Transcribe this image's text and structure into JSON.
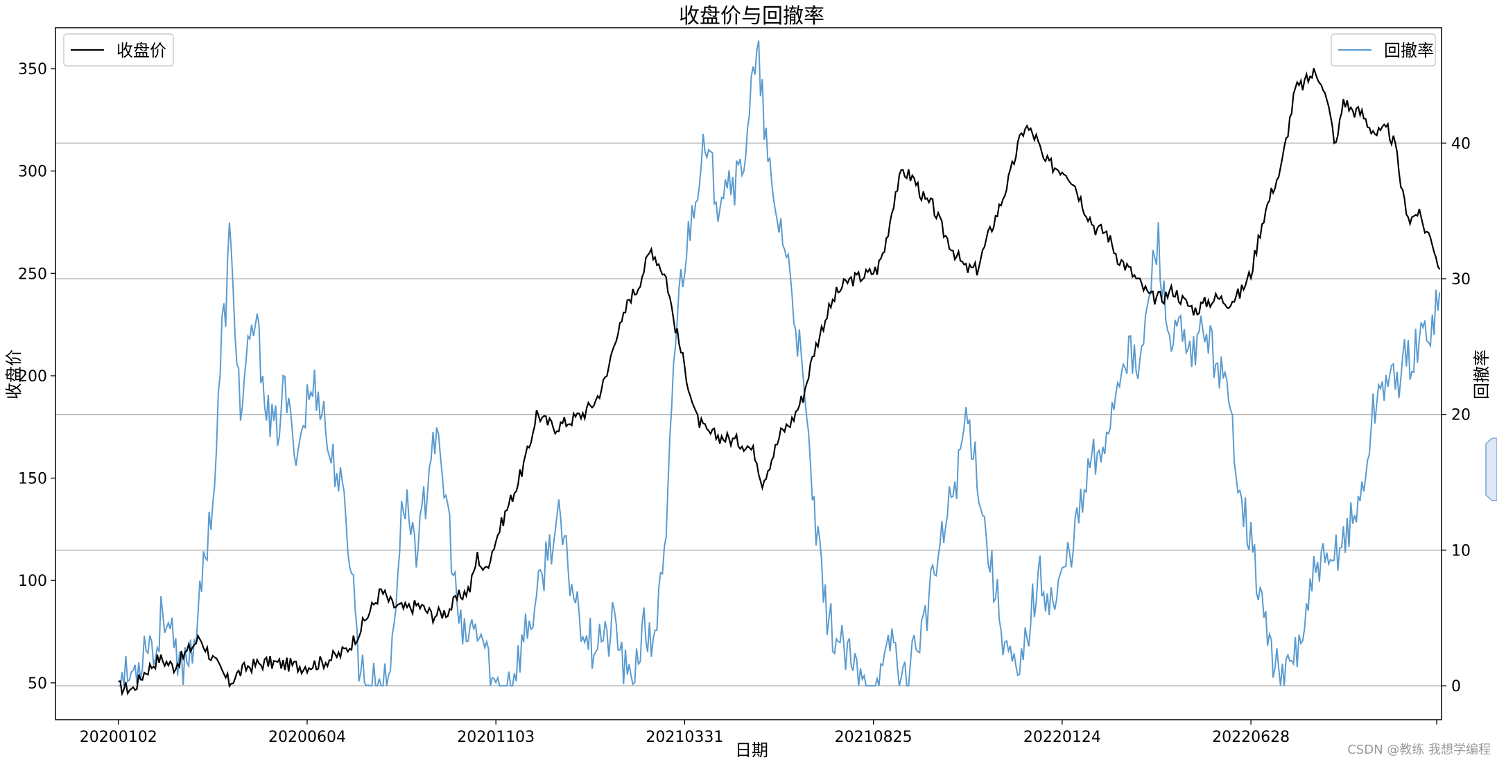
{
  "chart_data": {
    "type": "line",
    "title": "收盘价与回撤率",
    "xlabel": "日期",
    "ylabel_left": "收盘价",
    "ylabel_right": "回撤率",
    "x_tick_labels": [
      "20200102",
      "20200604",
      "20201103",
      "20210331",
      "20210825",
      "20220124",
      "20220628"
    ],
    "x_tick_index": [
      0,
      102,
      204,
      306,
      408,
      510,
      612
    ],
    "x_range": [
      -34,
      715
    ],
    "ylim_left": [
      32,
      370
    ],
    "yticks_left": [
      50,
      100,
      150,
      200,
      250,
      300,
      350
    ],
    "ylim_right": [
      -2.5,
      48.5
    ],
    "yticks_right": [
      0,
      10,
      20,
      30,
      40
    ],
    "grid": "horizontal lines at right-axis ticks",
    "legend_left": "top-left",
    "legend_right": "top-right",
    "series": [
      {
        "name": "收盘价",
        "axis": "left",
        "color": "#000000",
        "keypoints": [
          [
            0,
            48
          ],
          [
            8,
            47
          ],
          [
            14,
            55
          ],
          [
            22,
            62
          ],
          [
            30,
            58
          ],
          [
            38,
            66
          ],
          [
            44,
            72
          ],
          [
            50,
            63
          ],
          [
            56,
            55
          ],
          [
            60,
            50
          ],
          [
            64,
            54
          ],
          [
            70,
            58
          ],
          [
            80,
            60
          ],
          [
            90,
            59
          ],
          [
            100,
            58
          ],
          [
            110,
            60
          ],
          [
            120,
            64
          ],
          [
            125,
            68
          ],
          [
            130,
            75
          ],
          [
            136,
            85
          ],
          [
            142,
            95
          ],
          [
            148,
            88
          ],
          [
            155,
            86
          ],
          [
            162,
            88
          ],
          [
            170,
            83
          ],
          [
            178,
            85
          ],
          [
            184,
            92
          ],
          [
            190,
            96
          ],
          [
            194,
            112
          ],
          [
            198,
            104
          ],
          [
            204,
            120
          ],
          [
            210,
            135
          ],
          [
            216,
            148
          ],
          [
            222,
            165
          ],
          [
            226,
            182
          ],
          [
            230,
            178
          ],
          [
            236,
            175
          ],
          [
            244,
            178
          ],
          [
            252,
            182
          ],
          [
            258,
            188
          ],
          [
            264,
            200
          ],
          [
            268,
            218
          ],
          [
            272,
            225
          ],
          [
            276,
            238
          ],
          [
            280,
            242
          ],
          [
            284,
            252
          ],
          [
            288,
            262
          ],
          [
            292,
            255
          ],
          [
            296,
            248
          ],
          [
            300,
            228
          ],
          [
            304,
            212
          ],
          [
            308,
            196
          ],
          [
            312,
            180
          ],
          [
            318,
            172
          ],
          [
            326,
            170
          ],
          [
            334,
            168
          ],
          [
            340,
            166
          ],
          [
            344,
            162
          ],
          [
            348,
            148
          ],
          [
            354,
            162
          ],
          [
            358,
            172
          ],
          [
            364,
            178
          ],
          [
            370,
            190
          ],
          [
            376,
            212
          ],
          [
            382,
            228
          ],
          [
            388,
            240
          ],
          [
            394,
            246
          ],
          [
            400,
            248
          ],
          [
            406,
            250
          ],
          [
            410,
            252
          ],
          [
            414,
            262
          ],
          [
            420,
            290
          ],
          [
            424,
            300
          ],
          [
            430,
            296
          ],
          [
            436,
            285
          ],
          [
            440,
            283
          ],
          [
            446,
            270
          ],
          [
            452,
            260
          ],
          [
            458,
            252
          ],
          [
            464,
            252
          ],
          [
            470,
            268
          ],
          [
            476,
            282
          ],
          [
            482,
            298
          ],
          [
            486,
            312
          ],
          [
            490,
            322
          ],
          [
            496,
            316
          ],
          [
            500,
            305
          ],
          [
            506,
            302
          ],
          [
            512,
            300
          ],
          [
            516,
            295
          ],
          [
            522,
            282
          ],
          [
            528,
            272
          ],
          [
            534,
            270
          ],
          [
            540,
            258
          ],
          [
            546,
            252
          ],
          [
            552,
            245
          ],
          [
            558,
            238
          ],
          [
            564,
            238
          ],
          [
            570,
            242
          ],
          [
            576,
            236
          ],
          [
            582,
            232
          ],
          [
            588,
            236
          ],
          [
            594,
            238
          ],
          [
            600,
            236
          ],
          [
            606,
            240
          ],
          [
            612,
            250
          ],
          [
            618,
            275
          ],
          [
            624,
            292
          ],
          [
            628,
            300
          ],
          [
            632,
            320
          ],
          [
            636,
            340
          ],
          [
            640,
            342
          ],
          [
            646,
            348
          ],
          [
            650,
            345
          ],
          [
            654,
            330
          ],
          [
            658,
            312
          ],
          [
            662,
            335
          ],
          [
            666,
            330
          ],
          [
            672,
            328
          ],
          [
            676,
            322
          ],
          [
            680,
            318
          ],
          [
            686,
            320
          ],
          [
            690,
            312
          ],
          [
            694,
            288
          ],
          [
            698,
            276
          ],
          [
            702,
            280
          ],
          [
            706,
            272
          ],
          [
            710,
            266
          ],
          [
            714,
            252
          ]
        ]
      },
      {
        "name": "回撤率",
        "axis": "right",
        "color": "#5a9bcf",
        "keypoints": [
          [
            0,
            0
          ],
          [
            8,
            1
          ],
          [
            12,
            2
          ],
          [
            16,
            4
          ],
          [
            20,
            2
          ],
          [
            24,
            6
          ],
          [
            28,
            4
          ],
          [
            32,
            1
          ],
          [
            36,
            2
          ],
          [
            40,
            3
          ],
          [
            44,
            6
          ],
          [
            48,
            11
          ],
          [
            52,
            15
          ],
          [
            56,
            26
          ],
          [
            58,
            28
          ],
          [
            60,
            33
          ],
          [
            62,
            29
          ],
          [
            64,
            25
          ],
          [
            66,
            20
          ],
          [
            70,
            24
          ],
          [
            74,
            27
          ],
          [
            78,
            23
          ],
          [
            82,
            19
          ],
          [
            86,
            19
          ],
          [
            90,
            22
          ],
          [
            94,
            18
          ],
          [
            98,
            18
          ],
          [
            102,
            21
          ],
          [
            106,
            22
          ],
          [
            110,
            21
          ],
          [
            114,
            17
          ],
          [
            118,
            16
          ],
          [
            122,
            13
          ],
          [
            126,
            9
          ],
          [
            130,
            2
          ],
          [
            134,
            0
          ],
          [
            138,
            0
          ],
          [
            140,
            0
          ],
          [
            142,
            0
          ],
          [
            146,
            0
          ],
          [
            150,
            7
          ],
          [
            154,
            14
          ],
          [
            158,
            12
          ],
          [
            162,
            10
          ],
          [
            166,
            14
          ],
          [
            170,
            19
          ],
          [
            174,
            16
          ],
          [
            178,
            13
          ],
          [
            182,
            7
          ],
          [
            186,
            3
          ],
          [
            190,
            4
          ],
          [
            194,
            4
          ],
          [
            198,
            3
          ],
          [
            202,
            0
          ],
          [
            208,
            0
          ],
          [
            214,
            1
          ],
          [
            220,
            4
          ],
          [
            226,
            6
          ],
          [
            232,
            10
          ],
          [
            238,
            12
          ],
          [
            244,
            8
          ],
          [
            250,
            5
          ],
          [
            256,
            3
          ],
          [
            260,
            4
          ],
          [
            264,
            3
          ],
          [
            268,
            5
          ],
          [
            272,
            2
          ],
          [
            276,
            0
          ],
          [
            280,
            2
          ],
          [
            284,
            4
          ],
          [
            288,
            3
          ],
          [
            292,
            6
          ],
          [
            296,
            10
          ],
          [
            300,
            24
          ],
          [
            304,
            30
          ],
          [
            308,
            33
          ],
          [
            312,
            37
          ],
          [
            316,
            39
          ],
          [
            320,
            38
          ],
          [
            324,
            36
          ],
          [
            328,
            38
          ],
          [
            334,
            37
          ],
          [
            338,
            39
          ],
          [
            342,
            44
          ],
          [
            346,
            46
          ],
          [
            350,
            40
          ],
          [
            354,
            35
          ],
          [
            358,
            34
          ],
          [
            362,
            31
          ],
          [
            366,
            27
          ],
          [
            370,
            22
          ],
          [
            374,
            16
          ],
          [
            378,
            10
          ],
          [
            382,
            6
          ],
          [
            386,
            4
          ],
          [
            390,
            3
          ],
          [
            394,
            2
          ],
          [
            398,
            1
          ],
          [
            402,
            0
          ],
          [
            406,
            0
          ],
          [
            410,
            0
          ],
          [
            414,
            1
          ],
          [
            418,
            4
          ],
          [
            422,
            1
          ],
          [
            426,
            0
          ],
          [
            430,
            3
          ],
          [
            434,
            4
          ],
          [
            438,
            6
          ],
          [
            442,
            9
          ],
          [
            446,
            11
          ],
          [
            450,
            14
          ],
          [
            454,
            16
          ],
          [
            458,
            20
          ],
          [
            462,
            18
          ],
          [
            466,
            14
          ],
          [
            470,
            10
          ],
          [
            474,
            7
          ],
          [
            478,
            4
          ],
          [
            482,
            2
          ],
          [
            486,
            0
          ],
          [
            490,
            3
          ],
          [
            494,
            6
          ],
          [
            498,
            8
          ],
          [
            502,
            7
          ],
          [
            506,
            6
          ],
          [
            510,
            8
          ],
          [
            514,
            10
          ],
          [
            518,
            12
          ],
          [
            522,
            14
          ],
          [
            526,
            17
          ],
          [
            530,
            16
          ],
          [
            534,
            19
          ],
          [
            538,
            21
          ],
          [
            542,
            24
          ],
          [
            546,
            25
          ],
          [
            550,
            23
          ],
          [
            554,
            25
          ],
          [
            558,
            30
          ],
          [
            562,
            33
          ],
          [
            566,
            27
          ],
          [
            570,
            25
          ],
          [
            574,
            26
          ],
          [
            578,
            24
          ],
          [
            582,
            24
          ],
          [
            586,
            27
          ],
          [
            590,
            25
          ],
          [
            594,
            24
          ],
          [
            598,
            22
          ],
          [
            602,
            19
          ],
          [
            606,
            15
          ],
          [
            610,
            12
          ],
          [
            614,
            9
          ],
          [
            618,
            6
          ],
          [
            622,
            3
          ],
          [
            626,
            1
          ],
          [
            630,
            0
          ],
          [
            634,
            2
          ],
          [
            638,
            3
          ],
          [
            642,
            5
          ],
          [
            646,
            8
          ],
          [
            650,
            9
          ],
          [
            654,
            8
          ],
          [
            658,
            10
          ],
          [
            662,
            11
          ],
          [
            666,
            12
          ],
          [
            670,
            13
          ],
          [
            674,
            16
          ],
          [
            678,
            20
          ],
          [
            682,
            22
          ],
          [
            686,
            23
          ],
          [
            690,
            22
          ],
          [
            694,
            24
          ],
          [
            698,
            24
          ],
          [
            702,
            25
          ],
          [
            706,
            26
          ],
          [
            710,
            27
          ],
          [
            714,
            29
          ]
        ]
      }
    ]
  },
  "watermark": "CSDN @教练 我想学编程",
  "colors": {
    "price": "#000000",
    "drawdown": "#5a9bcf",
    "grid": "#b0b0b0",
    "scrollbar": "#dce8f6"
  }
}
